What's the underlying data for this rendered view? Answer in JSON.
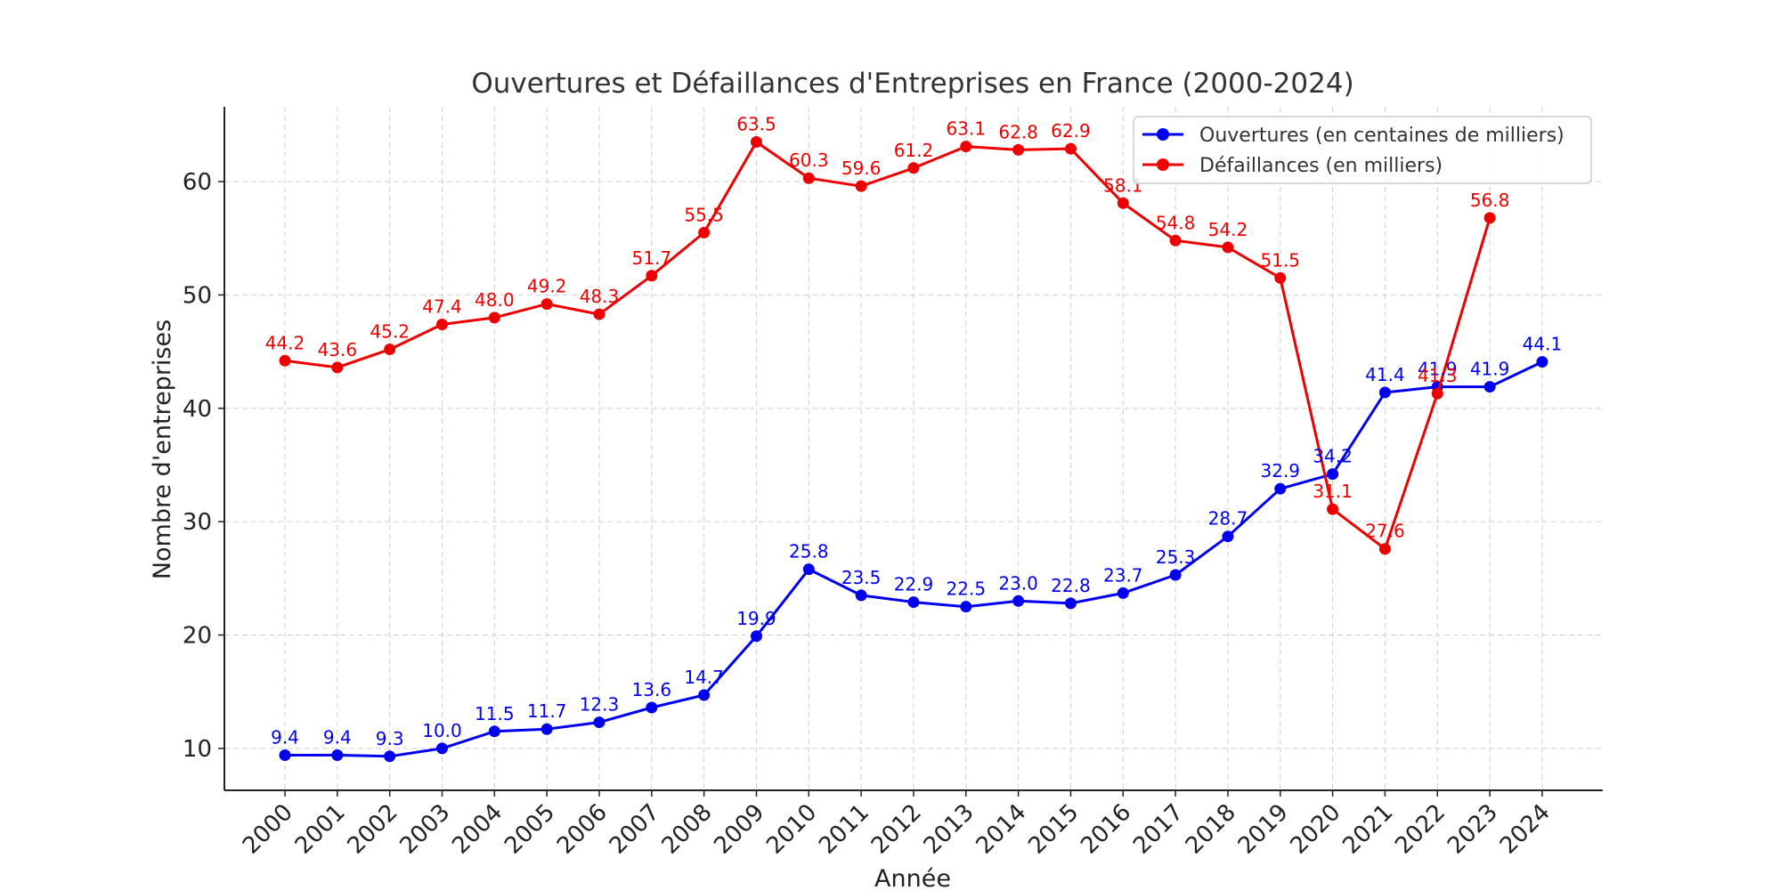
{
  "chart_data": {
    "type": "line",
    "title": "Ouvertures et Défaillances d'Entreprises en France (2000-2024)",
    "xlabel": "Année",
    "ylabel": "Nombre d'entreprises",
    "categories": [
      "2000",
      "2001",
      "2002",
      "2003",
      "2004",
      "2005",
      "2006",
      "2007",
      "2008",
      "2009",
      "2010",
      "2011",
      "2012",
      "2013",
      "2014",
      "2015",
      "2016",
      "2017",
      "2018",
      "2019",
      "2020",
      "2021",
      "2022",
      "2023",
      "2024"
    ],
    "ylim": [
      6.3,
      66.6
    ],
    "yticks": [
      10,
      20,
      30,
      40,
      50,
      60
    ],
    "grid": true,
    "legend_position": "top-right",
    "series": [
      {
        "name": "Ouvertures (en centaines de milliers)",
        "color": "#0000ee",
        "values": [
          9.4,
          9.4,
          9.3,
          10.0,
          11.5,
          11.7,
          12.3,
          13.6,
          14.7,
          19.9,
          25.8,
          23.5,
          22.9,
          22.5,
          23.0,
          22.8,
          23.7,
          25.3,
          28.7,
          32.9,
          34.2,
          41.4,
          41.9,
          41.9,
          44.1
        ],
        "labels": [
          "9.4",
          "9.4",
          "9.3",
          "10.0",
          "11.5",
          "11.7",
          "12.3",
          "13.6",
          "14.7",
          "19.9",
          "25.8",
          "23.5",
          "22.9",
          "22.5",
          "23.0",
          "22.8",
          "23.7",
          "25.3",
          "28.7",
          "32.9",
          "34.2",
          "41.4",
          "41.9",
          "41.9",
          "44.1"
        ]
      },
      {
        "name": "Défaillances (en milliers)",
        "color": "#ee0000",
        "values": [
          44.2,
          43.6,
          45.2,
          47.4,
          48.0,
          49.2,
          48.3,
          51.7,
          55.5,
          63.5,
          60.3,
          59.6,
          61.2,
          63.1,
          62.8,
          62.9,
          58.1,
          54.8,
          54.2,
          51.5,
          31.1,
          27.6,
          41.3,
          56.8,
          null
        ],
        "labels": [
          "44.2",
          "43.6",
          "45.2",
          "47.4",
          "48.0",
          "49.2",
          "48.3",
          "51.7",
          "55.5",
          "63.5",
          "60.3",
          "59.6",
          "61.2",
          "63.1",
          "62.8",
          "62.9",
          "58.1",
          "54.8",
          "54.2",
          "51.5",
          "31.1",
          "27.6",
          "41.3",
          "56.8",
          null
        ]
      }
    ]
  }
}
